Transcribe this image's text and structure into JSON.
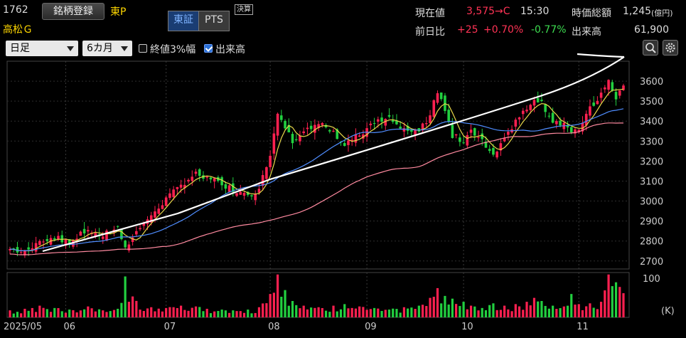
{
  "header": {
    "code": "1762",
    "register_label": "銘柄登録",
    "market": "東P",
    "name": "高松Ｇ",
    "exchange_tabs": [
      {
        "label": "東証",
        "active": true
      },
      {
        "label": "PTS",
        "active": false
      }
    ],
    "settle_badge": "決算"
  },
  "quote": {
    "price_label": "現在値",
    "price": "3,575",
    "price_suffix": "→C",
    "time": "15:30",
    "mktcap_label": "時価総額",
    "mktcap": "1,245",
    "mktcap_unit": "(億円)",
    "prev_label": "前日比",
    "change": "+25",
    "change_pct": "+0.70%",
    "other_pct": "-0.77%",
    "volume_label": "出来高",
    "volume": "61,900"
  },
  "controls": {
    "period_select": "日足",
    "range_select": "6カ月",
    "check_range": {
      "label": "終値3%幅",
      "checked": false
    },
    "check_volume": {
      "label": "出来高",
      "checked": true
    }
  },
  "icons": {
    "zoom": "zoom-icon",
    "settings": "gear-icon"
  },
  "colors": {
    "up": "#ff2050",
    "down": "#22d040",
    "ma5": "#e8d84a",
    "ma25": "#4f8dff",
    "ma75": "#ff8aa0",
    "trend": "#ffffff"
  },
  "chart_data": {
    "type": "candlestick",
    "ylim": [
      2660,
      3700
    ],
    "yticks": [
      2700,
      2800,
      2900,
      3000,
      3100,
      3200,
      3300,
      3400,
      3500,
      3600
    ],
    "month_labels": [
      {
        "label": "2025/05",
        "index": 0
      },
      {
        "label": "06",
        "index": 15
      },
      {
        "label": "07",
        "index": 42
      },
      {
        "label": "08",
        "index": 70
      },
      {
        "label": "09",
        "index": 96
      },
      {
        "label": "10",
        "index": 122
      },
      {
        "label": "11",
        "index": 153
      }
    ],
    "volume": {
      "ylabel": "(K)",
      "yticks": [
        100
      ],
      "ylim": [
        0,
        115
      ]
    },
    "anchors": [
      {
        "i": 0,
        "c": 2760,
        "v": 18
      },
      {
        "i": 4,
        "c": 2740,
        "v": 22
      },
      {
        "i": 8,
        "c": 2800,
        "v": 30
      },
      {
        "i": 12,
        "c": 2820,
        "v": 24
      },
      {
        "i": 16,
        "c": 2790,
        "v": 20
      },
      {
        "i": 21,
        "c": 2860,
        "v": 28
      },
      {
        "i": 25,
        "c": 2830,
        "v": 18
      },
      {
        "i": 29,
        "c": 2870,
        "v": 22
      },
      {
        "i": 31,
        "c": 2770,
        "v": 105
      },
      {
        "i": 35,
        "c": 2870,
        "v": 20
      },
      {
        "i": 38,
        "c": 2930,
        "v": 26
      },
      {
        "i": 42,
        "c": 3010,
        "v": 24
      },
      {
        "i": 46,
        "c": 3080,
        "v": 30
      },
      {
        "i": 50,
        "c": 3140,
        "v": 28
      },
      {
        "i": 53,
        "c": 3120,
        "v": 22
      },
      {
        "i": 57,
        "c": 3080,
        "v": 20
      },
      {
        "i": 60,
        "c": 3060,
        "v": 18
      },
      {
        "i": 64,
        "c": 3020,
        "v": 20
      },
      {
        "i": 67,
        "c": 3060,
        "v": 26
      },
      {
        "i": 70,
        "c": 3240,
        "v": 60
      },
      {
        "i": 72,
        "c": 3450,
        "v": 110
      },
      {
        "i": 74,
        "c": 3370,
        "v": 70
      },
      {
        "i": 76,
        "c": 3300,
        "v": 42
      },
      {
        "i": 79,
        "c": 3360,
        "v": 30
      },
      {
        "i": 83,
        "c": 3390,
        "v": 26
      },
      {
        "i": 87,
        "c": 3340,
        "v": 30
      },
      {
        "i": 90,
        "c": 3290,
        "v": 34
      },
      {
        "i": 94,
        "c": 3330,
        "v": 28
      },
      {
        "i": 98,
        "c": 3390,
        "v": 24
      },
      {
        "i": 102,
        "c": 3410,
        "v": 20
      },
      {
        "i": 106,
        "c": 3350,
        "v": 26
      },
      {
        "i": 110,
        "c": 3350,
        "v": 30
      },
      {
        "i": 113,
        "c": 3430,
        "v": 50
      },
      {
        "i": 115,
        "c": 3550,
        "v": 75
      },
      {
        "i": 117,
        "c": 3460,
        "v": 55
      },
      {
        "i": 119,
        "c": 3330,
        "v": 48
      },
      {
        "i": 122,
        "c": 3300,
        "v": 40
      },
      {
        "i": 124,
        "c": 3350,
        "v": 30
      },
      {
        "i": 127,
        "c": 3300,
        "v": 24
      },
      {
        "i": 130,
        "c": 3230,
        "v": 36
      },
      {
        "i": 133,
        "c": 3320,
        "v": 30
      },
      {
        "i": 136,
        "c": 3400,
        "v": 34
      },
      {
        "i": 139,
        "c": 3460,
        "v": 40
      },
      {
        "i": 141,
        "c": 3520,
        "v": 50
      },
      {
        "i": 143,
        "c": 3490,
        "v": 42
      },
      {
        "i": 146,
        "c": 3400,
        "v": 30
      },
      {
        "i": 149,
        "c": 3380,
        "v": 28
      },
      {
        "i": 151,
        "c": 3330,
        "v": 60
      },
      {
        "i": 153,
        "c": 3370,
        "v": 34
      },
      {
        "i": 156,
        "c": 3460,
        "v": 36
      },
      {
        "i": 159,
        "c": 3530,
        "v": 40
      },
      {
        "i": 161,
        "c": 3600,
        "v": 110
      },
      {
        "i": 163,
        "c": 3520,
        "v": 90
      },
      {
        "i": 165,
        "c": 3575,
        "v": 62
      }
    ],
    "n": 166
  }
}
